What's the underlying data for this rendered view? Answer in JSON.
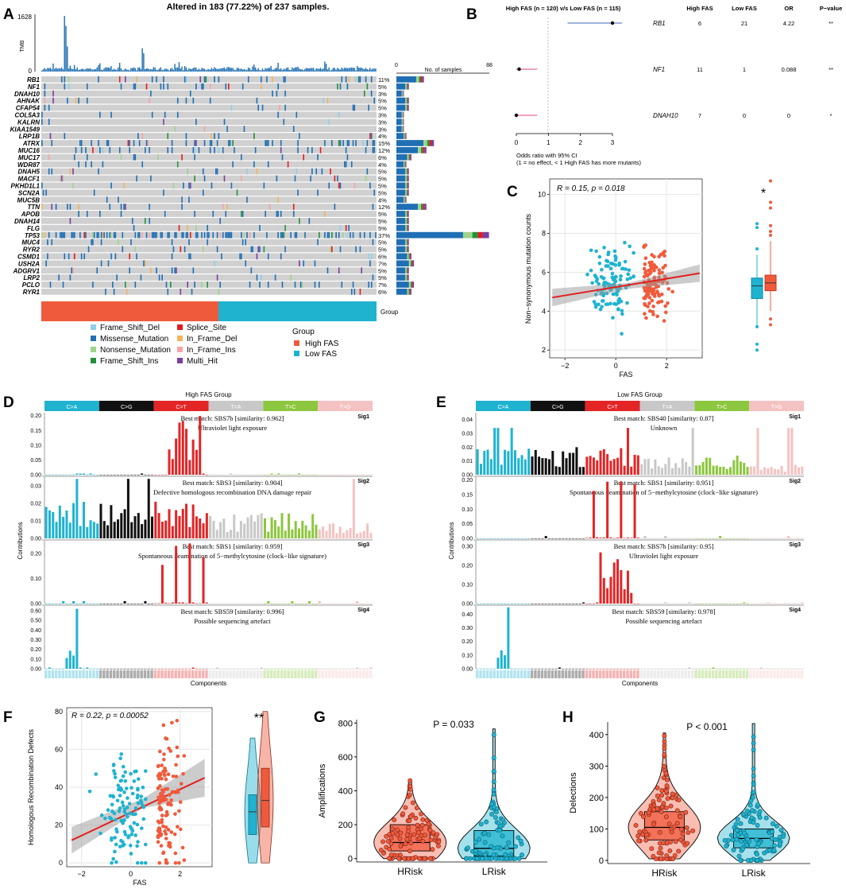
{
  "title": "Altered in 183 (77.22%) of 237 samples.",
  "panel_labels": [
    "A",
    "B",
    "C",
    "D",
    "E",
    "F",
    "G",
    "H"
  ],
  "colors": {
    "frame_shift_del": "#8ecfe9",
    "missense": "#1f6fb4",
    "nonsense": "#9dd48a",
    "frame_shift_ins": "#23913a",
    "splice": "#e41a1c",
    "in_frame_del": "#f3b35a",
    "in_frame_ins": "#f6a3a6",
    "multi_hit": "#7b3f9e",
    "high": "#f05a3c",
    "low": "#1fb3d0",
    "grid": "#d0d0d0",
    "ca": "#1fb3d0",
    "cg": "#111111",
    "ct": "#e32526",
    "ta": "#c8c8c8",
    "tc": "#8dc63f",
    "tg": "#f4c2c2"
  },
  "chart_data": [
    {
      "id": "A",
      "type": "heatmap",
      "title": "Altered in 183 (77.22%) of 237 samples.",
      "tmb_label": "TMB",
      "tmb_max": 1628,
      "tmb_zero": 0,
      "bar_axis_label": "No. of samples",
      "bar_axis_range": [
        0,
        88
      ],
      "genes": [
        "RB1",
        "NF1",
        "DNAH10",
        "AHNAK",
        "CFAP54",
        "COL5A3",
        "KALRN",
        "KIAA1549",
        "LRP1B",
        "ATRX",
        "MUC16",
        "MUC17",
        "WDR87",
        "DNAH5",
        "MACF1",
        "PKHD1L1",
        "SCN2A",
        "MUC5B",
        "TTN",
        "APOB",
        "DNAH14",
        "FLG",
        "TP53",
        "MUC4",
        "RYR2",
        "CSMD1",
        "USH2A",
        "ADGRV1",
        "LRP2",
        "PCLO",
        "RYR1"
      ],
      "percentages": [
        "11%",
        "5%",
        "3%",
        "5%",
        "5%",
        "3%",
        "3%",
        "3%",
        "4%",
        "15%",
        "12%",
        "6%",
        "4%",
        "5%",
        "5%",
        "5%",
        "5%",
        "4%",
        "12%",
        "5%",
        "5%",
        "5%",
        "37%",
        "5%",
        "5%",
        "6%",
        "7%",
        "5%",
        "5%",
        "7%",
        "6%"
      ],
      "group_label": "Group",
      "legend_items": [
        "Frame_Shift_Del",
        "Missense_Mutation",
        "Nonsense_Mutation",
        "Frame_Shift_Ins",
        "Splice_Site",
        "In_Frame_Del",
        "In_Frame_Ins",
        "Multi_Hit"
      ],
      "group_legend_title": "Group",
      "group_legend_items": [
        "High FAS",
        "Low FAS"
      ]
    },
    {
      "id": "B",
      "type": "scatter",
      "title": "High FAS (n = 120) v/s Low FAS (n = 115)",
      "columns": [
        "High FAS",
        "Low FAS",
        "OR",
        "P−value"
      ],
      "rows": [
        {
          "gene": "RB1",
          "high": "6",
          "low": "21",
          "or": "4.22",
          "p": "**",
          "or_value": 4.22
        },
        {
          "gene": "NF1",
          "high": "11",
          "low": "1",
          "or": "0.088",
          "p": "**",
          "or_value": 0.088
        },
        {
          "gene": "DNAH10",
          "high": "7",
          "low": "0",
          "or": "0",
          "p": "*",
          "or_value": 0
        }
      ],
      "x_ticks": [
        "0",
        "1",
        "2",
        "3"
      ],
      "xlim": [
        0,
        3
      ],
      "xlabel_lines": [
        "Odds ratio with 95% CI",
        "(1 = no effect, < 1 High FAS has more mutants)"
      ]
    },
    {
      "id": "C",
      "type": "scatter",
      "annotation": "R = 0.15, p = 0.018",
      "xlabel": "FAS",
      "ylabel": "Non−synonymous mutation counts",
      "x_ticks": [
        "−2",
        "0",
        "2"
      ],
      "y_ticks": [
        "2",
        "4",
        "6",
        "8",
        "10"
      ],
      "xlim": [
        -2.6,
        3.4
      ],
      "ylim": [
        1.6,
        10.8
      ],
      "fit": {
        "x": [
          -2.5,
          3.3
        ],
        "y": [
          4.7,
          5.95
        ]
      },
      "box_star": "*",
      "boxes": [
        {
          "group": "Low FAS",
          "median": 5.3,
          "q1": 4.65,
          "q3": 5.7,
          "lo": 3.2,
          "hi": 6.9
        },
        {
          "group": "High FAS",
          "median": 5.45,
          "q1": 5.05,
          "q3": 5.85,
          "lo": 4.0,
          "hi": 7.6
        }
      ]
    },
    {
      "id": "D",
      "type": "bar",
      "title": "High FAS Group",
      "categories": [
        "C>A",
        "C>G",
        "C>T",
        "T>A",
        "T>C",
        "T>G"
      ],
      "ylabel": "Contributions",
      "xlabel": "Components",
      "signatures": [
        {
          "name": "Sig1",
          "match": "Best match: SBS7b [similarity: 0.962]",
          "desc": "Ultraviolet light exposure",
          "y_ticks": [
            "0.00",
            "0.05",
            "0.10",
            "0.15",
            "0.20"
          ],
          "ymax": 0.21,
          "pattern": "uv",
          "scale": 0.2
        },
        {
          "name": "Sig2",
          "match": "Best match: SBS3 [similarity: 0.904]",
          "desc": "Defective homologous recombination DNA damage repair",
          "y_ticks": [
            "0.00",
            "0.01",
            "0.02",
            "0.03"
          ],
          "ymax": 0.035,
          "pattern": "flat",
          "scale": 0.02
        },
        {
          "name": "Sig3",
          "match": "Best match: SBS1 [similarity: 0.959]",
          "desc": "Spontaneous deamination of 5−methylcytosine (clock−like signature)",
          "y_ticks": [
            "0.00",
            "0.10",
            "0.20"
          ],
          "ymax": 0.25,
          "pattern": "cpg",
          "scale": 0.24
        },
        {
          "name": "Sig4",
          "match": "Best match: SBS59 [similarity: 0.996]",
          "desc": "Possible sequencing artefact",
          "y_ticks": [
            "0.00",
            "0.10",
            "0.20",
            "0.30",
            "0.40",
            "0.50",
            "0.60"
          ],
          "ymax": 0.65,
          "pattern": "artefact",
          "scale": 0.62
        }
      ]
    },
    {
      "id": "E",
      "type": "bar",
      "title": "Low FAS Group",
      "categories": [
        "C>A",
        "C>G",
        "C>T",
        "T>A",
        "T>C",
        "T>G"
      ],
      "ylabel": "Contributions",
      "xlabel": "Components",
      "signatures": [
        {
          "name": "Sig1",
          "match": "Best match: SBS40 [similarity: 0.87]",
          "desc": "Unknown",
          "y_ticks": [
            "0.00",
            "0.01",
            "0.02",
            "0.03",
            "0.04"
          ],
          "ymax": 0.045,
          "pattern": "flat",
          "scale": 0.02
        },
        {
          "name": "Sig2",
          "match": "Best match: SBS1 [similarity: 0.951]",
          "desc": "Spontaneous deamination of 5−methylcytosine (clock−like signature)",
          "y_ticks": [
            "0.00",
            "0.05",
            "0.10",
            "0.15",
            "0.20"
          ],
          "ymax": 0.21,
          "pattern": "cpg",
          "scale": 0.2
        },
        {
          "name": "Sig3",
          "match": "Best match: SBS7b [similarity: 0.95]",
          "desc": "Ultraviolet light exposure",
          "y_ticks": [
            "0.00",
            "0.10",
            "0.20",
            "0.30"
          ],
          "ymax": 0.33,
          "pattern": "uv",
          "scale": 0.3
        },
        {
          "name": "Sig4",
          "match": "Best match: SBS59 [similarity: 0.978]",
          "desc": "Possible sequencing artefact",
          "y_ticks": [
            "0.00",
            "0.10",
            "0.20",
            "0.30",
            "0.40"
          ],
          "ymax": 0.46,
          "pattern": "artefact",
          "scale": 0.45
        }
      ]
    },
    {
      "id": "F",
      "type": "scatter",
      "annotation": "R = 0.22, p = 0.00052",
      "xlabel": "FAS",
      "ylabel": "Homologous Recombination Defects",
      "x_ticks": [
        "−2",
        "0",
        "2"
      ],
      "y_ticks": [
        "0",
        "20",
        "40",
        "60",
        "80"
      ],
      "xlim": [
        -2.6,
        3.3
      ],
      "ylim": [
        -2,
        82
      ],
      "fit": {
        "x": [
          -2.4,
          3.0
        ],
        "y": [
          12,
          45
        ]
      },
      "violin_star": "**"
    },
    {
      "id": "G",
      "type": "bar",
      "annotation": "P = 0.033",
      "ylabel": "Amplifications",
      "categories": [
        "HRisk",
        "LRisk"
      ],
      "y_ticks": [
        "0",
        "200",
        "400",
        "600",
        "800"
      ],
      "ylim": [
        -20,
        820
      ],
      "boxes": [
        {
          "group": "HRisk",
          "median": 95,
          "q1": 45,
          "q3": 200,
          "lo": 0,
          "hi": 460
        },
        {
          "group": "LRisk",
          "median": 60,
          "q1": 15,
          "q3": 165,
          "lo": 0,
          "hi": 765
        }
      ]
    },
    {
      "id": "H",
      "type": "bar",
      "annotation": "P < 0.001",
      "ylabel": "Delections",
      "categories": [
        "HRisk",
        "LRisk"
      ],
      "y_ticks": [
        "0",
        "100",
        "200",
        "300",
        "400"
      ],
      "ylim": [
        -10,
        440
      ],
      "boxes": [
        {
          "group": "HRisk",
          "median": 105,
          "q1": 65,
          "q3": 155,
          "lo": 5,
          "hi": 405
        },
        {
          "group": "LRisk",
          "median": 70,
          "q1": 40,
          "q3": 100,
          "lo": 0,
          "hi": 435
        }
      ]
    }
  ]
}
